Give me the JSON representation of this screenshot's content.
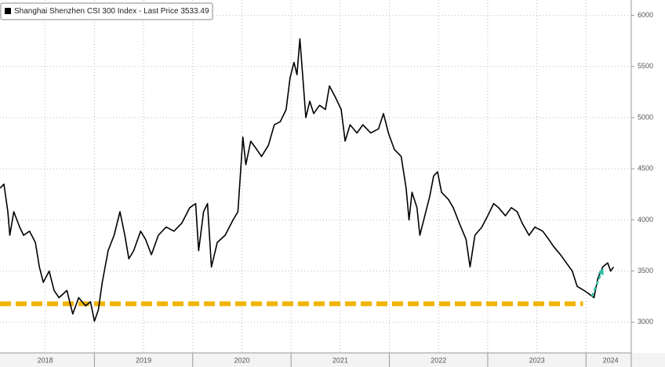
{
  "chart_data": {
    "type": "line",
    "legend": "Shanghai Shenzhen CSI 300 Index - Last Price 3533.49",
    "x": [
      2018.04,
      2018.08,
      2018.12,
      2018.14,
      2018.18,
      2018.24,
      2018.28,
      2018.34,
      2018.4,
      2018.44,
      2018.48,
      2018.54,
      2018.59,
      2018.64,
      2018.72,
      2018.78,
      2018.84,
      2018.91,
      2018.96,
      2019.0,
      2019.04,
      2019.08,
      2019.14,
      2019.2,
      2019.26,
      2019.31,
      2019.35,
      2019.4,
      2019.47,
      2019.52,
      2019.58,
      2019.65,
      2019.73,
      2019.81,
      2019.89,
      2019.97,
      2020.03,
      2020.06,
      2020.11,
      2020.15,
      2020.19,
      2020.25,
      2020.33,
      2020.41,
      2020.46,
      2020.51,
      2020.54,
      2020.59,
      2020.65,
      2020.7,
      2020.77,
      2020.83,
      2020.89,
      2020.95,
      2020.99,
      2021.03,
      2021.06,
      2021.09,
      2021.12,
      2021.15,
      2021.19,
      2021.23,
      2021.29,
      2021.35,
      2021.39,
      2021.45,
      2021.51,
      2021.55,
      2021.6,
      2021.67,
      2021.73,
      2021.81,
      2021.89,
      2021.94,
      2021.99,
      2022.05,
      2022.12,
      2022.17,
      2022.2,
      2022.23,
      2022.28,
      2022.31,
      2022.36,
      2022.41,
      2022.45,
      2022.49,
      2022.53,
      2022.6,
      2022.65,
      2022.71,
      2022.78,
      2022.82,
      2022.87,
      2022.94,
      2023.0,
      2023.06,
      2023.11,
      2023.18,
      2023.24,
      2023.3,
      2023.35,
      2023.42,
      2023.48,
      2023.56,
      2023.62,
      2023.67,
      2023.74,
      2023.8,
      2023.86,
      2023.91,
      2023.98,
      2024.04,
      2024.08,
      2024.12,
      2024.17,
      2024.22,
      2024.25,
      2024.28
    ],
    "series": [
      {
        "name": "Shanghai Shenzhen CSI 300 Index",
        "color": "#000000",
        "values": [
          4310,
          4350,
          4080,
          3850,
          4080,
          3930,
          3850,
          3890,
          3780,
          3540,
          3390,
          3500,
          3310,
          3240,
          3310,
          3080,
          3240,
          3160,
          3200,
          3010,
          3120,
          3390,
          3700,
          3850,
          4080,
          3850,
          3620,
          3700,
          3890,
          3810,
          3660,
          3850,
          3930,
          3890,
          3970,
          4120,
          4160,
          3700,
          4080,
          4160,
          3540,
          3780,
          3850,
          4000,
          4080,
          4810,
          4540,
          4770,
          4690,
          4620,
          4730,
          4930,
          4960,
          5080,
          5390,
          5540,
          5420,
          5770,
          5390,
          5000,
          5160,
          5040,
          5120,
          5080,
          5310,
          5200,
          5080,
          4770,
          4930,
          4850,
          4930,
          4850,
          4890,
          5040,
          4850,
          4690,
          4620,
          4310,
          4000,
          4270,
          4120,
          3850,
          4040,
          4230,
          4430,
          4470,
          4270,
          4200,
          4120,
          3970,
          3810,
          3540,
          3850,
          3930,
          4040,
          4160,
          4120,
          4040,
          4120,
          4080,
          3970,
          3850,
          3930,
          3890,
          3810,
          3740,
          3660,
          3580,
          3500,
          3350,
          3310,
          3270,
          3240,
          3430,
          3540,
          3580,
          3500,
          3540
        ]
      }
    ],
    "xlim": [
      2018.04,
      2024.46
    ],
    "xticks": [
      {
        "value": 2018.5,
        "label": "2018"
      },
      {
        "value": 2019.5,
        "label": "2019"
      },
      {
        "value": 2020.5,
        "label": "2020"
      },
      {
        "value": 2021.5,
        "label": "2021"
      },
      {
        "value": 2022.5,
        "label": "2022"
      },
      {
        "value": 2023.5,
        "label": "2023"
      },
      {
        "value": 2024.25,
        "label": "2024"
      }
    ],
    "year_boundaries": [
      2019,
      2020,
      2021,
      2022,
      2023,
      2024
    ],
    "xgrid": [
      2018.5,
      2019,
      2019.5,
      2020,
      2020.5,
      2021,
      2021.5,
      2022,
      2022.5,
      2023,
      2023.5,
      2024
    ],
    "ylim": [
      2700,
      6150
    ],
    "yticks": [
      3000,
      3500,
      4000,
      4500,
      5000,
      5500,
      6000
    ],
    "grid": true,
    "support_line": {
      "value": 3180,
      "x": [
        2018.04,
        2023.97
      ],
      "color": "#f0b400"
    },
    "arrow": {
      "x": [
        2024.06,
        2024.17
      ],
      "y": [
        3250,
        3520
      ],
      "color": "#2bbfa0"
    }
  }
}
